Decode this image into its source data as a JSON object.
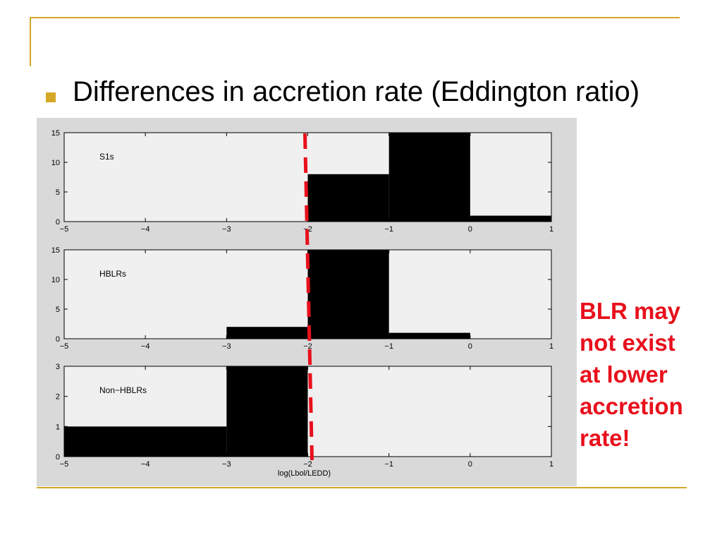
{
  "slide": {
    "bullet": "Differences in accretion rate (Eddington ratio)",
    "annotation_lines": [
      "BLR may",
      "not exist",
      "at lower",
      "accretion",
      "rate!"
    ]
  },
  "colors": {
    "accent": "#d4a826",
    "annotation": "#e8101c",
    "bars": "#000000",
    "plot_bg": "#f0f0f0",
    "cutoff_line": "#e8101c"
  },
  "chart_data": [
    {
      "type": "bar",
      "label": "S1s",
      "bins": [
        {
          "x0": -2,
          "x1": -1,
          "value": 8
        },
        {
          "x0": -1,
          "x1": 0,
          "value": 15
        },
        {
          "x0": 0,
          "x1": 1,
          "value": 1
        }
      ],
      "xlim": [
        -5,
        1
      ],
      "ylim": [
        0,
        15
      ],
      "xticks": [
        "−5",
        "−4",
        "−3",
        "−2",
        "−1",
        "0",
        "1"
      ],
      "yticks": [
        "0",
        "5",
        "10",
        "15"
      ],
      "xlabel": ""
    },
    {
      "type": "bar",
      "label": "HBLRs",
      "bins": [
        {
          "x0": -3,
          "x1": -2,
          "value": 2
        },
        {
          "x0": -2,
          "x1": -1,
          "value": 15
        },
        {
          "x0": -1,
          "x1": 0,
          "value": 1
        }
      ],
      "xlim": [
        -5,
        1
      ],
      "ylim": [
        0,
        15
      ],
      "xticks": [
        "−5",
        "−4",
        "−3",
        "−2",
        "−1",
        "0",
        "1"
      ],
      "yticks": [
        "0",
        "5",
        "10",
        "15"
      ],
      "xlabel": ""
    },
    {
      "type": "bar",
      "label": "Non−HBLRs",
      "bins": [
        {
          "x0": -5,
          "x1": -3,
          "value": 1
        },
        {
          "x0": -3,
          "x1": -2,
          "value": 3
        }
      ],
      "xlim": [
        -5,
        1
      ],
      "ylim": [
        0,
        3
      ],
      "xticks": [
        "−5",
        "−4",
        "−3",
        "−2",
        "−1",
        "0",
        "1"
      ],
      "yticks": [
        "0",
        "1",
        "2",
        "3"
      ],
      "xlabel": "log(Lbol/LEDD)"
    }
  ],
  "cutoff_x": -2
}
